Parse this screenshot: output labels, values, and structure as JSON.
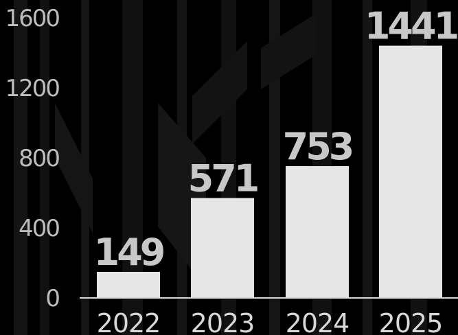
{
  "chart_data": {
    "type": "bar",
    "categories": [
      "2022",
      "2023",
      "2024",
      "2025"
    ],
    "values": [
      149,
      571,
      753,
      1441
    ],
    "data_labels": [
      "149",
      "571",
      "753",
      "1441"
    ],
    "title": "",
    "xlabel": "",
    "ylabel": "",
    "ylim": [
      0,
      1600
    ],
    "y_ticks": [
      0,
      400,
      800,
      1200,
      1600
    ],
    "y_tick_labels": [
      "0",
      "400",
      "800",
      "1200",
      "1600"
    ],
    "grid": false,
    "legend": "none"
  },
  "colors": {
    "background": "#000000",
    "bar": "#e6e6e6",
    "axis": "#d9d9d9",
    "decor": "#1a1a1a"
  }
}
